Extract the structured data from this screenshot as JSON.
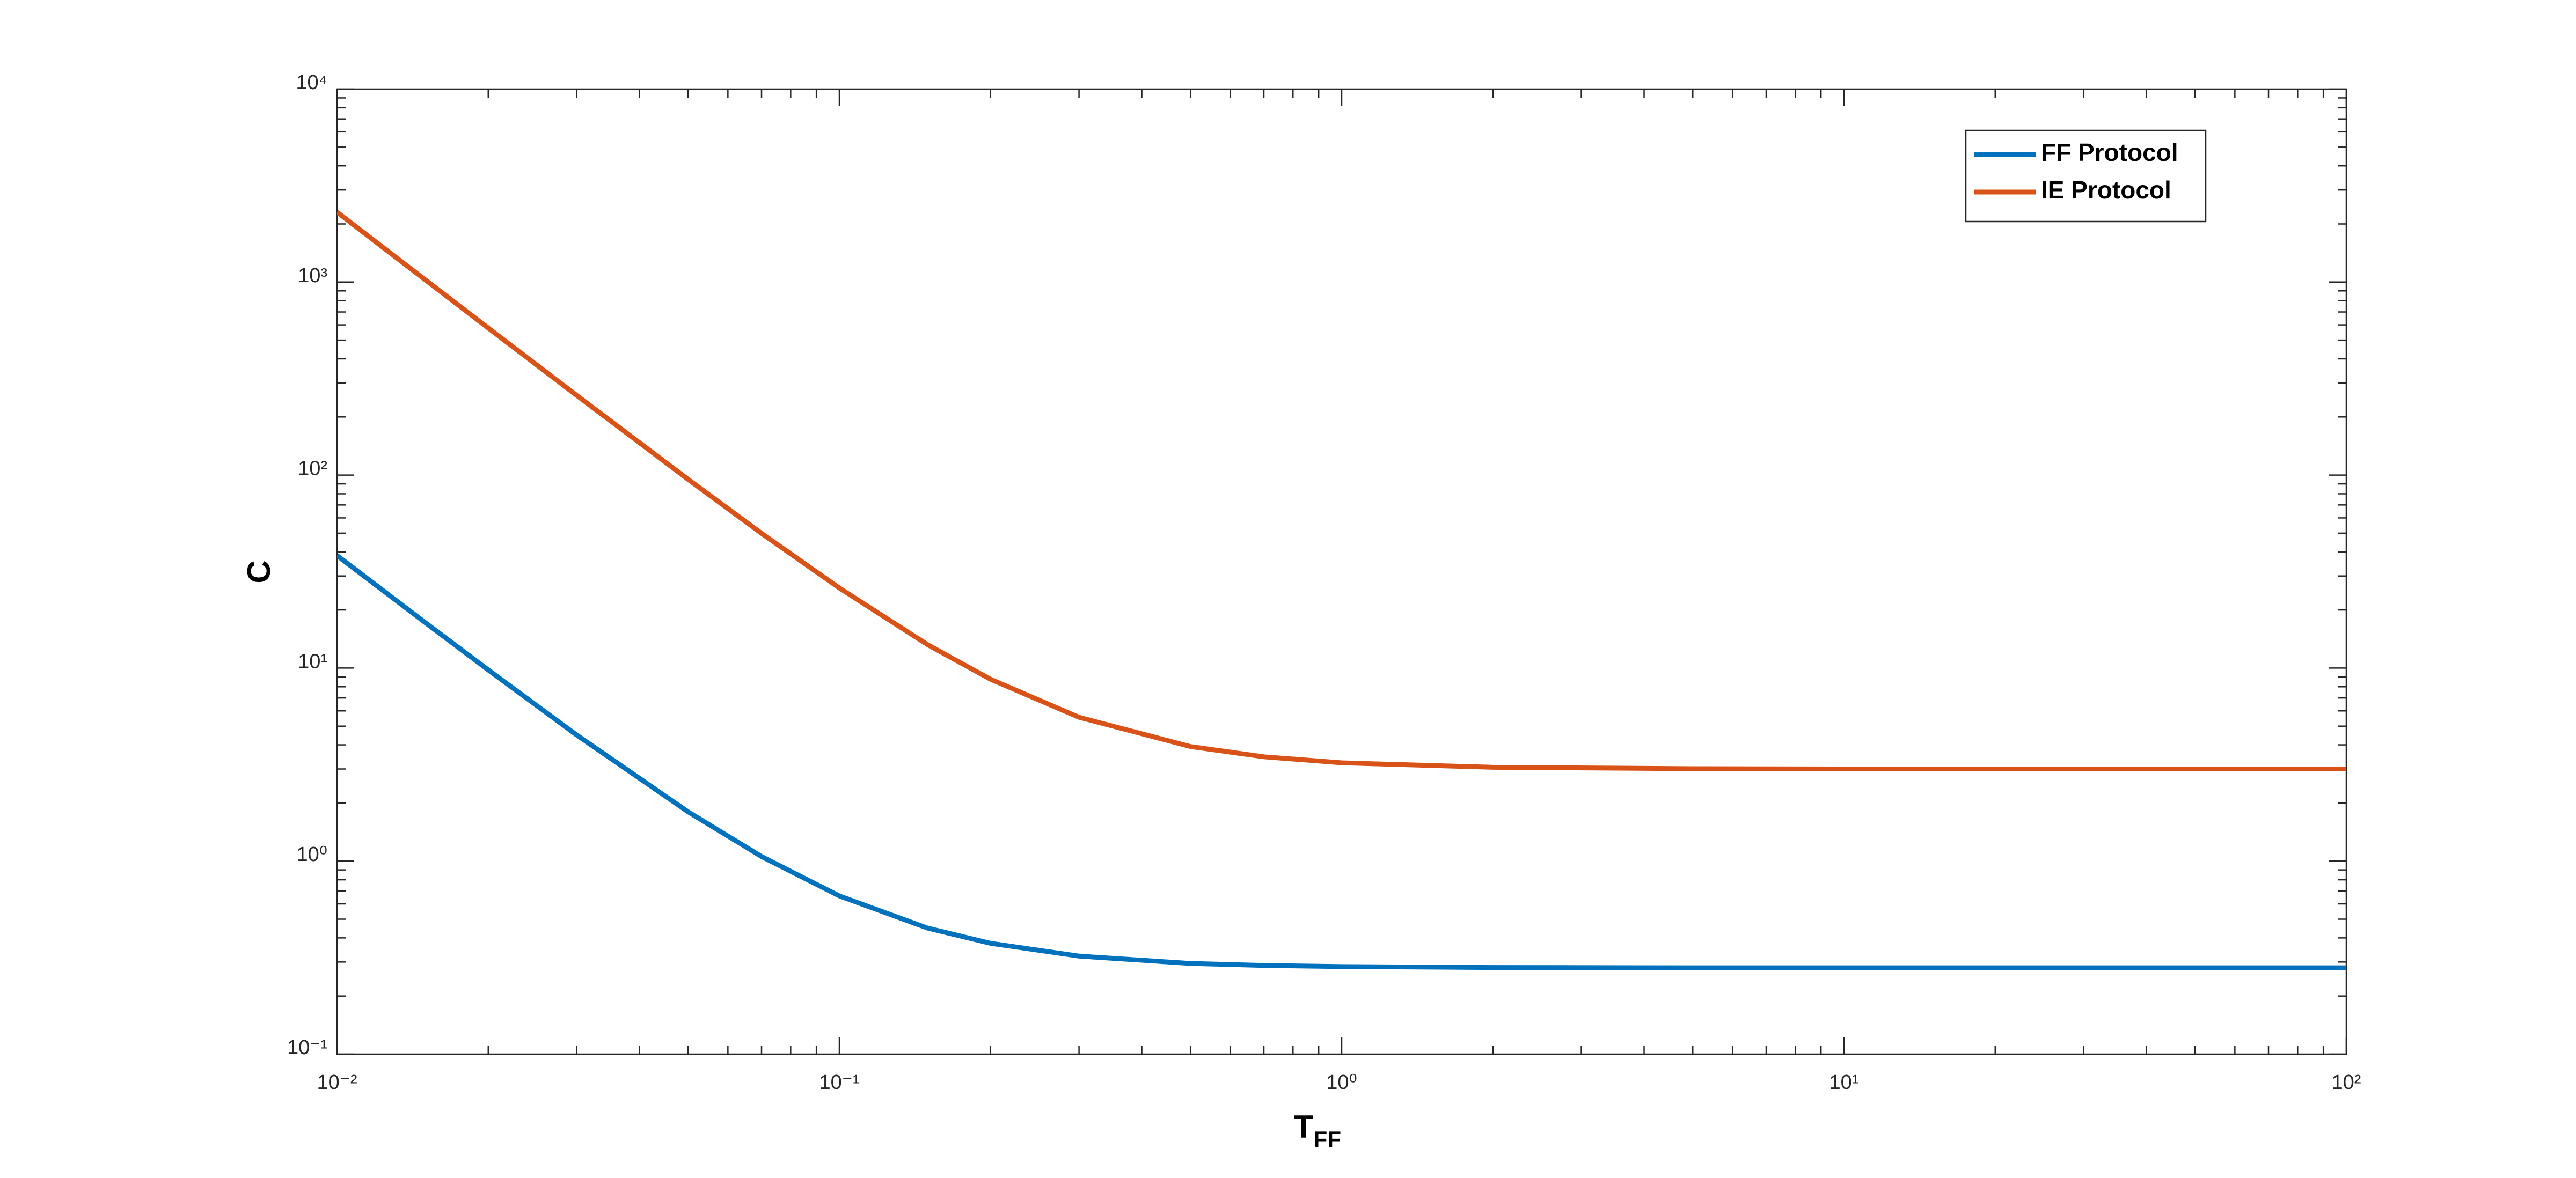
{
  "chart_data": {
    "type": "line",
    "xlabel": "T",
    "xlabel_subscript": "FF",
    "ylabel": "C",
    "x": [
      0.01,
      0.015,
      0.02,
      0.03,
      0.05,
      0.07,
      0.1,
      0.15,
      0.2,
      0.3,
      0.5,
      0.7,
      1,
      2,
      5,
      10,
      100
    ],
    "series": [
      {
        "name": "FF Protocol",
        "color": "#0072bd",
        "values": [
          38.28,
          17.17,
          9.78,
          4.5,
          1.8,
          1.056,
          0.66,
          0.449,
          0.375,
          0.322,
          0.295,
          0.288,
          0.284,
          0.281,
          0.28,
          0.28,
          0.28
        ]
      },
      {
        "name": "IE Protocol",
        "color": "#d95319",
        "values": [
          2303,
          1025,
          578,
          258.6,
          95,
          49.9,
          26,
          13.2,
          8.75,
          5.56,
          3.92,
          3.47,
          3.23,
          3.06,
          3.01,
          3.0,
          3.0
        ]
      }
    ],
    "xlog": true,
    "ylog": true,
    "xlim": [
      0.01,
      100
    ],
    "ylim": [
      0.1,
      10000
    ],
    "xticks": [
      {
        "value": 0.01,
        "label": "10⁻²"
      },
      {
        "value": 0.1,
        "label": "10⁻¹"
      },
      {
        "value": 1,
        "label": "10⁰"
      },
      {
        "value": 10,
        "label": "10¹"
      },
      {
        "value": 100,
        "label": "10²"
      }
    ],
    "yticks": [
      {
        "value": 0.1,
        "label": "10⁻¹"
      },
      {
        "value": 1,
        "label": "10⁰"
      },
      {
        "value": 10,
        "label": "10¹"
      },
      {
        "value": 100,
        "label": "10²"
      },
      {
        "value": 1000,
        "label": "10³"
      },
      {
        "value": 10000,
        "label": "10⁴"
      }
    ],
    "grid": false,
    "legend": "upper right"
  }
}
